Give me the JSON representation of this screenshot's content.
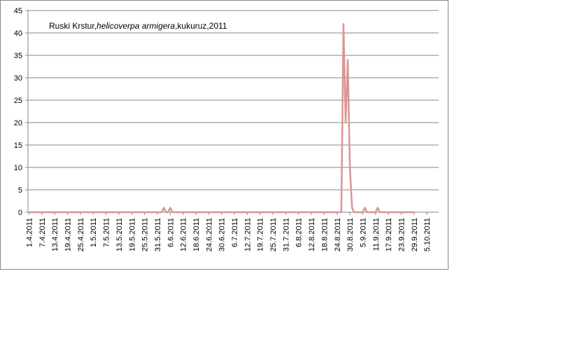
{
  "chart_data": {
    "type": "line",
    "title_segments": [
      "Ruski Krstur,",
      "helicoverpa armigera",
      ",kukuruz,2011"
    ],
    "categories": [
      "1.4.2011",
      null,
      null,
      null,
      null,
      null,
      "7.4.2011",
      null,
      null,
      null,
      null,
      null,
      "13.4.2011",
      null,
      null,
      null,
      null,
      null,
      "19.4.2011",
      null,
      null,
      null,
      null,
      null,
      "25.4.2011",
      null,
      null,
      null,
      null,
      null,
      "1.5.2011",
      null,
      null,
      null,
      null,
      null,
      "7.5.2011",
      null,
      null,
      null,
      null,
      null,
      "13.5.2011",
      null,
      null,
      null,
      null,
      null,
      "19.5.2011",
      null,
      null,
      null,
      null,
      null,
      "25.5.2011",
      null,
      null,
      null,
      null,
      null,
      "31.5.2011",
      null,
      null,
      null,
      null,
      null,
      "6.6.2011",
      null,
      null,
      null,
      null,
      null,
      "12.6.2011",
      null,
      null,
      null,
      null,
      null,
      "18.6.2011",
      null,
      null,
      null,
      null,
      null,
      "24.6.2011",
      null,
      null,
      null,
      null,
      null,
      "30.6.2011",
      null,
      null,
      null,
      null,
      null,
      "6.7.2011",
      null,
      null,
      null,
      null,
      null,
      "12.7.2011",
      null,
      null,
      null,
      null,
      null,
      "19.7.2011",
      null,
      null,
      null,
      null,
      null,
      "25.7.2011",
      null,
      null,
      null,
      null,
      null,
      "31.7.2011",
      null,
      null,
      null,
      null,
      null,
      "6.8.2011",
      null,
      null,
      null,
      null,
      null,
      "12.8.2011",
      null,
      null,
      null,
      null,
      null,
      "18.8.2011",
      null,
      null,
      null,
      null,
      null,
      "24.8.2011",
      null,
      null,
      null,
      null,
      null,
      "30.8.2011",
      null,
      null,
      null,
      null,
      null,
      "5.9.2011",
      null,
      null,
      null,
      null,
      null,
      "11.9.2011",
      null,
      null,
      null,
      null,
      null,
      "17.9.2011",
      null,
      null,
      null,
      null,
      null,
      "23.9.2011",
      null,
      null,
      null,
      null,
      null,
      "29.9.2011",
      null,
      null,
      null,
      null,
      null,
      "5.10.2011",
      null,
      null,
      null,
      null,
      null
    ],
    "series": [
      {
        "name": "helicoverpa armigera",
        "color": "#d99694",
        "values": [
          0,
          0,
          0,
          0,
          0,
          0,
          0,
          0,
          0,
          0,
          0,
          0,
          0,
          0,
          0,
          0,
          0,
          0,
          0,
          0,
          0,
          0,
          0,
          0,
          0,
          0,
          0,
          0,
          0,
          0,
          0,
          0,
          0,
          0,
          0,
          0,
          0,
          0,
          0,
          0,
          0,
          0,
          0,
          0,
          0,
          0,
          0,
          0,
          0,
          0,
          0,
          0,
          0,
          0,
          0,
          0,
          0,
          0,
          0,
          0,
          0,
          0,
          0,
          1,
          0,
          0,
          1,
          0,
          0,
          0,
          0,
          0,
          0,
          0,
          0,
          0,
          0,
          0,
          0,
          0,
          0,
          0,
          0,
          0,
          0,
          0,
          0,
          0,
          0,
          0,
          0,
          0,
          0,
          0,
          0,
          0,
          0,
          0,
          0,
          0,
          0,
          0,
          0,
          0,
          0,
          0,
          0,
          0,
          0,
          0,
          0,
          0,
          0,
          0,
          0,
          0,
          0,
          0,
          0,
          0,
          0,
          0,
          0,
          0,
          0,
          0,
          0,
          0,
          0,
          0,
          0,
          0,
          0,
          0,
          0,
          0,
          0,
          0,
          0,
          0,
          0,
          0,
          0,
          0,
          0,
          0,
          0,
          42,
          20,
          34,
          10,
          1,
          0,
          0,
          0,
          0,
          0,
          1,
          0,
          0,
          0,
          0,
          0,
          1,
          0,
          0,
          0,
          0,
          0,
          0,
          0,
          0,
          0,
          0,
          0,
          0,
          0,
          0,
          0,
          0,
          0,
          null,
          null,
          null,
          null,
          null,
          null,
          null,
          null,
          null,
          null,
          null
        ]
      }
    ],
    "ylim": [
      0,
      45
    ],
    "yticks": [
      0,
      5,
      10,
      15,
      20,
      25,
      30,
      35,
      40,
      45
    ],
    "grid": true
  }
}
